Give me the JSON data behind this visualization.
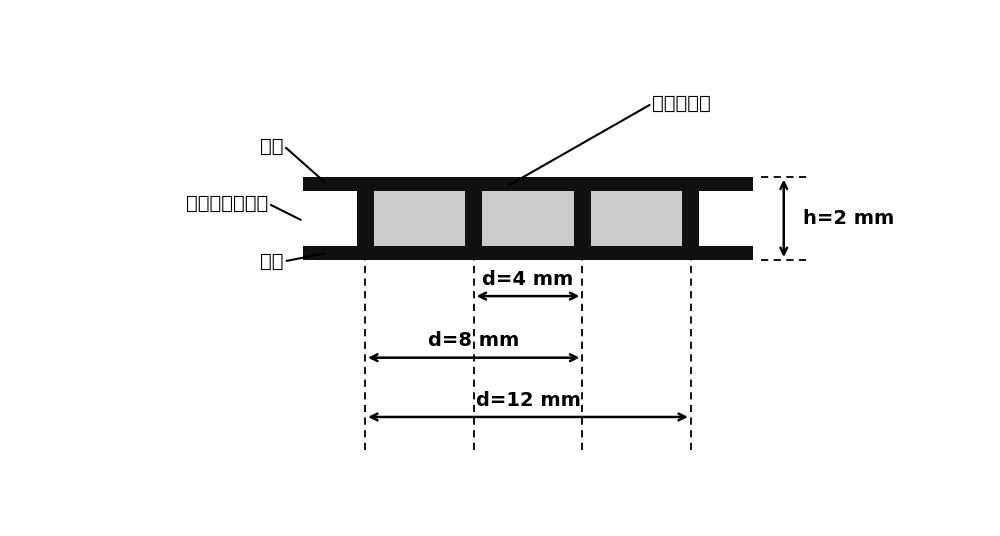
{
  "bg_color": "#ffffff",
  "line_color": "#000000",
  "copper_color": "#111111",
  "pdms_fill": "#cccccc",
  "label_tongpian_top": "铜片",
  "label_pdms": "聚二甲基硅氧烷",
  "label_tongpian_bot": "铜片",
  "label_fenti": "粉体填充处",
  "label_h": "h=2 mm",
  "label_d4": "d=4 mm",
  "label_d8": "d=8 mm",
  "label_d12": "d=12 mm",
  "font_size": 14
}
